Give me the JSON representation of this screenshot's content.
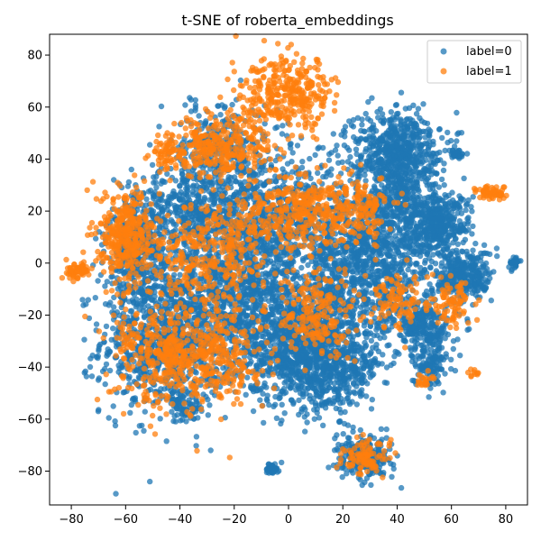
{
  "chart_data": {
    "type": "scatter",
    "title": "t-SNE of roberta_embeddings",
    "xlabel": "",
    "ylabel": "",
    "xlim": [
      -88,
      88
    ],
    "ylim": [
      -93,
      88
    ],
    "x_ticks": [
      -80,
      -60,
      -40,
      -20,
      0,
      20,
      40,
      60,
      80
    ],
    "y_ticks": [
      -80,
      -60,
      -40,
      -20,
      0,
      20,
      40,
      60,
      80
    ],
    "grid": false,
    "legend_position": "top-right",
    "series": [
      {
        "name": "label=0",
        "color": "#1f77b4",
        "clusters": [
          {
            "cx": -45,
            "cy": -30,
            "sx": 12,
            "sy": 14,
            "n": 900
          },
          {
            "cx": -20,
            "cy": -10,
            "sx": 12,
            "sy": 16,
            "n": 900
          },
          {
            "cx": 5,
            "cy": -30,
            "sx": 12,
            "sy": 12,
            "n": 900
          },
          {
            "cx": 15,
            "cy": -40,
            "sx": 10,
            "sy": 8,
            "n": 500
          },
          {
            "cx": 0,
            "cy": 15,
            "sx": 14,
            "sy": 14,
            "n": 800
          },
          {
            "cx": 30,
            "cy": 0,
            "sx": 12,
            "sy": 14,
            "n": 900
          },
          {
            "cx": 40,
            "cy": 45,
            "sx": 8,
            "sy": 7,
            "n": 500
          },
          {
            "cx": 55,
            "cy": 15,
            "sx": 6,
            "sy": 6,
            "n": 400
          },
          {
            "cx": 65,
            "cy": -5,
            "sx": 5,
            "sy": 5,
            "n": 300
          },
          {
            "cx": 50,
            "cy": -25,
            "sx": 5,
            "sy": 5,
            "n": 250
          },
          {
            "cx": 52,
            "cy": -40,
            "sx": 3,
            "sy": 4,
            "n": 100
          },
          {
            "cx": 28,
            "cy": -75,
            "sx": 5,
            "sy": 4,
            "n": 250
          },
          {
            "cx": -6,
            "cy": -79,
            "sx": 1.2,
            "sy": 1.2,
            "n": 40
          },
          {
            "cx": 83,
            "cy": 0,
            "sx": 1,
            "sy": 1,
            "n": 30
          },
          {
            "cx": 62,
            "cy": 42,
            "sx": 1,
            "sy": 1,
            "n": 30
          },
          {
            "cx": -25,
            "cy": 45,
            "sx": 8,
            "sy": 8,
            "n": 300
          },
          {
            "cx": -55,
            "cy": 5,
            "sx": 6,
            "sy": 12,
            "n": 400
          },
          {
            "cx": -38,
            "cy": -55,
            "sx": 3,
            "sy": 3,
            "n": 60
          },
          {
            "cx": -35,
            "cy": 20,
            "sx": 10,
            "sy": 8,
            "n": 400
          },
          {
            "cx": 40,
            "cy": 25,
            "sx": 8,
            "sy": 10,
            "n": 400
          }
        ]
      },
      {
        "name": "label=1",
        "color": "#ff7f0e",
        "clusters": [
          {
            "cx": 0,
            "cy": 65,
            "sx": 9,
            "sy": 7,
            "n": 350
          },
          {
            "cx": -25,
            "cy": 45,
            "sx": 9,
            "sy": 6,
            "n": 300
          },
          {
            "cx": -60,
            "cy": 10,
            "sx": 5,
            "sy": 9,
            "n": 350
          },
          {
            "cx": -45,
            "cy": -35,
            "sx": 10,
            "sy": 10,
            "n": 350
          },
          {
            "cx": -25,
            "cy": -35,
            "sx": 8,
            "sy": 10,
            "n": 250
          },
          {
            "cx": 5,
            "cy": 20,
            "sx": 10,
            "sy": 8,
            "n": 300
          },
          {
            "cx": -45,
            "cy": 42,
            "sx": 3,
            "sy": 3,
            "n": 60
          },
          {
            "cx": -77,
            "cy": -3,
            "sx": 2.5,
            "sy": 1.5,
            "n": 60
          },
          {
            "cx": 28,
            "cy": -75,
            "sx": 4,
            "sy": 3,
            "n": 100
          },
          {
            "cx": 75,
            "cy": 27,
            "sx": 3,
            "sy": 1.5,
            "n": 60
          },
          {
            "cx": 60,
            "cy": -15,
            "sx": 4,
            "sy": 5,
            "n": 80
          },
          {
            "cx": 10,
            "cy": -20,
            "sx": 8,
            "sy": 8,
            "n": 200
          },
          {
            "cx": 25,
            "cy": 20,
            "sx": 6,
            "sy": 6,
            "n": 150
          },
          {
            "cx": -35,
            "cy": 0,
            "sx": 10,
            "sy": 10,
            "n": 200
          },
          {
            "cx": 40,
            "cy": -15,
            "sx": 6,
            "sy": 6,
            "n": 100
          },
          {
            "cx": 50,
            "cy": -45,
            "sx": 1.5,
            "sy": 1.5,
            "n": 20
          },
          {
            "cx": 68,
            "cy": -42,
            "sx": 1,
            "sy": 1,
            "n": 10
          },
          {
            "cx": -20,
            "cy": 10,
            "sx": 8,
            "sy": 8,
            "n": 150
          }
        ]
      }
    ]
  }
}
